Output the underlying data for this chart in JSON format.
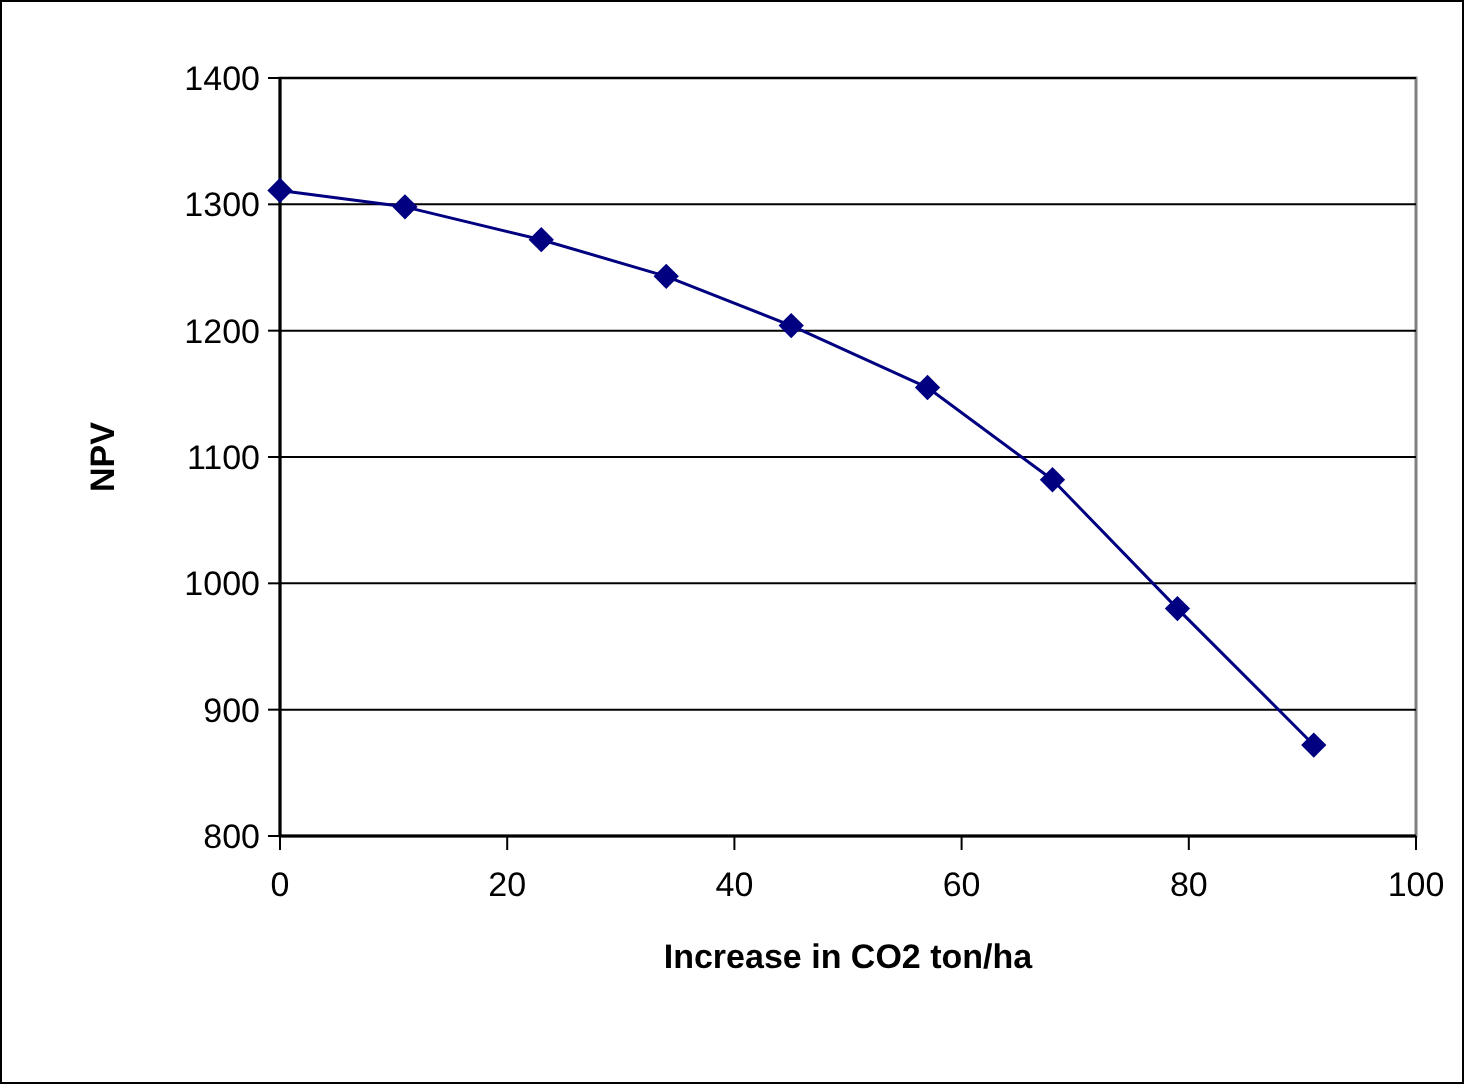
{
  "chart_data": {
    "type": "line",
    "xlabel": "Increase in CO2 ton/ha",
    "ylabel": "NPV",
    "x": [
      0,
      11,
      23,
      34,
      45,
      57,
      68,
      79,
      91
    ],
    "series": [
      {
        "color": "#000080",
        "values": [
          1311,
          1298,
          1272,
          1243,
          1204,
          1155,
          1082,
          980,
          872
        ]
      }
    ],
    "xlim": [
      0,
      100
    ],
    "xticks": [
      0,
      20,
      40,
      60,
      80,
      100
    ],
    "ylim": [
      800,
      1400
    ],
    "yticks": [
      800,
      900,
      1000,
      1100,
      1200,
      1300,
      1400
    ],
    "grid": "y",
    "marker": "diamond",
    "line_style": "solid"
  }
}
